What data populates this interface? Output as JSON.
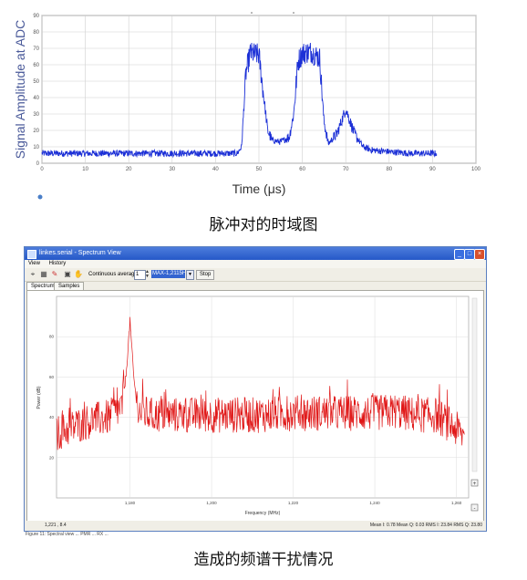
{
  "top_chart": {
    "ylabel": "Signal Amplitude at ADC",
    "xlabel": "Time (μs)",
    "y_ticks": [
      "0",
      "10",
      "20",
      "30",
      "40",
      "50",
      "60",
      "70",
      "80",
      "90"
    ],
    "x_ticks": [
      "0",
      "10",
      "20",
      "30",
      "40",
      "50",
      "60",
      "70",
      "80",
      "90",
      "100"
    ],
    "series_color": "#1b2fd6"
  },
  "caption_top": "脉冲对的时域图",
  "window": {
    "title": "linkes.serial - Spectrum View",
    "menu": [
      "View",
      "History"
    ],
    "toolbar": {
      "averaging_label": "Continuous averaging",
      "averaging_value": "1",
      "mode_value": "MAX-1,2115Hz",
      "stop_label": "Stop"
    },
    "tabs": [
      "Spectrum",
      "Samples"
    ],
    "status_left": "1,221 , 8.4",
    "status_right": "Mean I: 0.78  Mean Q: 0.03  RMS I: 23.84  RMS Q: 23.80",
    "footer_fragment": "Figure 11: Spectral view ... PMR ... RX ..."
  },
  "bottom_chart": {
    "ylabel": "Power (dB)",
    "xlabel": "Frequency (MHz)",
    "y_ticks": [
      "20",
      "40",
      "60",
      "80"
    ],
    "x_ticks": [
      "1,180",
      "1,200",
      "1,220",
      "1,240",
      "1,260"
    ],
    "series_color": "#e01818"
  },
  "caption_bottom": "造成的频谱干扰情况",
  "chart_data": [
    {
      "type": "line",
      "xlabel": "Time (μs)",
      "ylabel": "Signal Amplitude at ADC",
      "xlim": [
        0,
        100
      ],
      "ylim": [
        0,
        90
      ],
      "grid": true,
      "x": [
        0,
        5,
        10,
        15,
        20,
        25,
        30,
        35,
        40,
        45,
        46,
        47,
        48,
        50,
        52,
        53,
        55,
        57,
        58,
        59,
        60,
        62,
        64,
        65,
        66,
        68,
        70,
        72,
        74,
        76,
        80,
        85,
        91
      ],
      "values": [
        6,
        6,
        6,
        6,
        6,
        6,
        6,
        6,
        6,
        6,
        10,
        55,
        67,
        66,
        20,
        14,
        13,
        16,
        30,
        62,
        67,
        68,
        64,
        25,
        12,
        18,
        33,
        18,
        10,
        8,
        7,
        6,
        6
      ]
    },
    {
      "type": "line",
      "xlabel": "Frequency (MHz)",
      "ylabel": "Power (dB)",
      "xlim": [
        1162,
        1263
      ],
      "ylim": [
        0,
        100
      ],
      "grid": true,
      "x": [
        1162,
        1170,
        1175,
        1178,
        1179,
        1180,
        1181,
        1182,
        1185,
        1190,
        1200,
        1210,
        1220,
        1230,
        1240,
        1245,
        1250,
        1255,
        1260,
        1262
      ],
      "values": [
        33,
        39,
        41,
        46,
        60,
        88,
        58,
        44,
        42,
        42,
        42,
        42,
        43,
        43,
        43,
        44,
        42,
        42,
        35,
        31
      ]
    }
  ]
}
